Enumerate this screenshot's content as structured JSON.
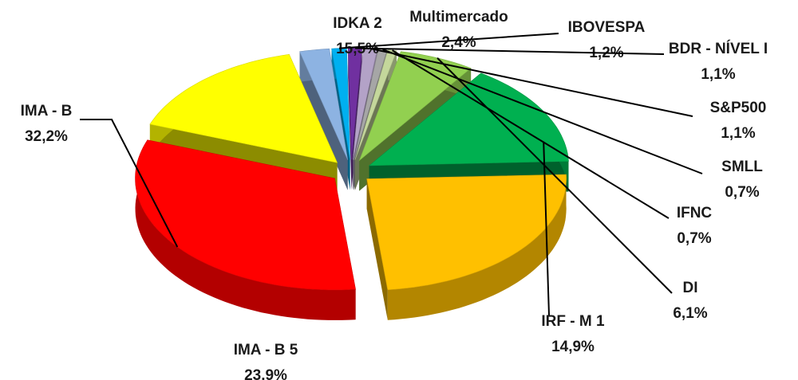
{
  "chart_data": {
    "type": "pie",
    "categories": [
      "IMA - B",
      "IDKA 2",
      "Multimercado",
      "IBOVESPA",
      "BDR - NÍVEL I",
      "S&P500",
      "SMLL",
      "IFNC",
      "DI",
      "IRF - M 1",
      "IMA - B 5"
    ],
    "values": [
      32.2,
      15.5,
      2.4,
      1.2,
      1.1,
      1.1,
      0.7,
      0.7,
      6.1,
      14.9,
      23.9
    ],
    "value_labels": [
      "32,2%",
      "15,5%",
      "2,4%",
      "1,2%",
      "1,1%",
      "1,1%",
      "0,7%",
      "0,7%",
      "6,1%",
      "14,9%",
      "23.9%"
    ],
    "colors": [
      "#ff0000",
      "#ffff00",
      "#8db3e2",
      "#00b0f0",
      "#7030a0",
      "#b3a2c7",
      "#a6a6a6",
      "#c4d79b",
      "#92d050",
      "#00b050",
      "#ffc000"
    ]
  }
}
